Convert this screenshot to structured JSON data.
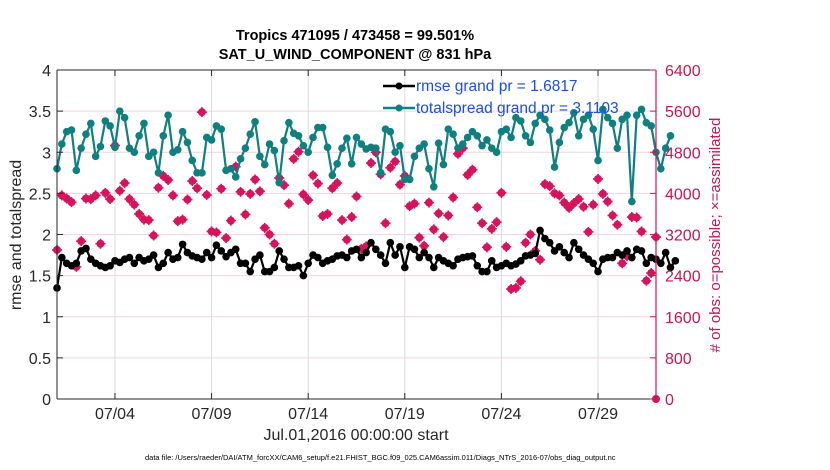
{
  "chart_data": {
    "type": "line",
    "title": [
      "Tropics 471095 / 473458 = 99.501%",
      "SAT_U_WIND_COMPONENT @ 831 hPa"
    ],
    "xlabel": "Jul.01,2016 00:00:00 start",
    "ylabel": "rmse and totalspread",
    "ylabel_right": "# of obs: o=possible; ×=assimilated",
    "xlim_days": [
      0,
      31
    ],
    "ylim": [
      0,
      4
    ],
    "ylim_right": [
      0,
      6400
    ],
    "x_ticks": [
      {
        "day": 3,
        "label": "07/04"
      },
      {
        "day": 8,
        "label": "07/09"
      },
      {
        "day": 13,
        "label": "07/14"
      },
      {
        "day": 18,
        "label": "07/19"
      },
      {
        "day": 23,
        "label": "07/24"
      },
      {
        "day": 28,
        "label": "07/29"
      }
    ],
    "y_ticks": [
      "0",
      "0.5",
      "1",
      "1.5",
      "2",
      "2.5",
      "3",
      "3.5",
      "4"
    ],
    "y_ticks_right": [
      "0",
      "800",
      "1600",
      "2400",
      "3200",
      "4000",
      "4800",
      "5600",
      "6400"
    ],
    "grid": true,
    "legend_placement": "top-right",
    "legend": [
      {
        "label": "rmse grand pr = 1.6817",
        "color": "#000000"
      },
      {
        "label": "totalspread grand pr = 3.1103",
        "color": "#0f7f7f"
      }
    ],
    "time_step_days": 0.25,
    "series": [
      {
        "name": "rmse",
        "axis": "left",
        "color": "#000000",
        "values": [
          1.35,
          1.72,
          1.65,
          1.62,
          1.65,
          1.8,
          1.83,
          1.7,
          1.65,
          1.62,
          1.6,
          1.62,
          1.68,
          1.66,
          1.7,
          1.72,
          1.65,
          1.72,
          1.68,
          1.7,
          1.75,
          1.6,
          1.65,
          1.78,
          1.7,
          1.72,
          1.88,
          1.78,
          1.74,
          1.72,
          1.7,
          1.78,
          1.72,
          1.87,
          1.8,
          1.73,
          1.78,
          1.82,
          1.65,
          1.65,
          1.55,
          1.7,
          1.75,
          1.55,
          1.55,
          1.6,
          1.8,
          1.7,
          1.6,
          1.6,
          1.62,
          1.5,
          1.65,
          1.75,
          1.72,
          1.65,
          1.68,
          1.7,
          1.74,
          1.75,
          1.72,
          1.8,
          1.82,
          1.72,
          1.78,
          1.9,
          1.82,
          1.75,
          1.65,
          1.9,
          1.75,
          1.85,
          1.6,
          1.85,
          1.82,
          1.72,
          1.78,
          1.72,
          1.6,
          1.72,
          1.68,
          1.65,
          1.62,
          1.7,
          1.72,
          1.73,
          1.74,
          1.62,
          1.55,
          1.55,
          1.68,
          1.6,
          1.62,
          1.65,
          1.62,
          1.64,
          1.68,
          1.74,
          1.75,
          1.77,
          2.05,
          1.95,
          1.9,
          1.8,
          1.85,
          1.78,
          1.72,
          1.9,
          1.82,
          1.75,
          1.7,
          1.65,
          1.55,
          1.7,
          1.72,
          1.72,
          1.78,
          1.75,
          1.8,
          1.72,
          1.82,
          1.8,
          1.65,
          1.72,
          1.7,
          1.65,
          1.78,
          1.6,
          1.68
        ]
      },
      {
        "name": "totalspread",
        "axis": "left",
        "color": "#0f7f7f",
        "values": [
          2.8,
          3.1,
          3.25,
          3.27,
          2.78,
          3.05,
          3.22,
          3.35,
          2.95,
          3.07,
          3.38,
          3.32,
          3.06,
          3.5,
          3.42,
          3.05,
          3.0,
          3.2,
          3.35,
          2.95,
          3.0,
          2.75,
          3.2,
          3.45,
          3.0,
          3.03,
          3.25,
          3.12,
          2.9,
          2.75,
          2.75,
          3.18,
          3.15,
          3.32,
          3.28,
          2.78,
          2.8,
          2.7,
          2.92,
          3.05,
          3.22,
          3.37,
          2.95,
          2.85,
          3.1,
          3.02,
          2.63,
          3.14,
          3.36,
          3.23,
          3.2,
          3.08,
          3.0,
          3.18,
          3.3,
          3.3,
          3.06,
          2.72,
          2.86,
          3.05,
          3.17,
          2.86,
          3.18,
          3.1,
          3.04,
          3.06,
          3.05,
          2.75,
          3.28,
          3.25,
          3.0,
          3.08,
          2.67,
          2.67,
          2.95,
          3.05,
          3.1,
          2.8,
          2.58,
          3.11,
          2.85,
          3.28,
          3.22,
          3.05,
          3.1,
          3.18,
          3.25,
          3.2,
          3.08,
          3.15,
          3.05,
          3.0,
          3.25,
          3.28,
          3.18,
          3.42,
          3.38,
          3.2,
          3.12,
          3.35,
          3.45,
          3.4,
          3.27,
          2.82,
          3.12,
          3.3,
          3.36,
          3.48,
          3.2,
          3.4,
          3.45,
          3.28,
          2.9,
          3.52,
          3.42,
          3.35,
          3.05,
          3.4,
          3.45,
          2.4,
          3.45,
          3.52,
          3.36,
          3.32,
          3.0,
          2.8,
          3.05,
          3.2
        ]
      }
    ],
    "obs_series": [
      {
        "name": "obs possible",
        "axis": "right",
        "color": "#d6145e",
        "marker": "o",
        "values": [
          2900,
          3960,
          3900,
          3830,
          2570,
          3070,
          3900,
          3890,
          3960,
          3020,
          4010,
          3890,
          4930,
          4050,
          4200,
          3890,
          3780,
          3600,
          3490,
          3480,
          3180,
          4110,
          4340,
          4260,
          3960,
          3460,
          3490,
          3880,
          4240,
          4100,
          5580,
          3970,
          3260,
          3240,
          4090,
          3130,
          3470,
          4520,
          4030,
          3590,
          3990,
          4270,
          4040,
          3330,
          3200,
          3020,
          4300,
          4160,
          3800,
          4670,
          4810,
          3980,
          3870,
          4350,
          4190,
          3560,
          3600,
          4100,
          4200,
          3480,
          3100,
          3540,
          3940,
          2920,
          2970,
          4590,
          4800,
          4370,
          3420,
          4500,
          4620,
          4170,
          4340,
          3750,
          3800,
          3140,
          2980,
          3820,
          3300,
          3610,
          3150,
          3570,
          3920,
          4770,
          4880,
          4360,
          4460,
          3730,
          3420,
          2950,
          3310,
          3440,
          4010,
          2960,
          2140,
          2160,
          2290,
          3040,
          3200,
          2880,
          2710,
          4180,
          4140,
          4000,
          3960,
          3820,
          3720,
          3810,
          3890,
          3740,
          3250,
          3780,
          4280,
          3990,
          3840,
          3570,
          3390,
          2640,
          2780,
          3540,
          3530,
          3260,
          2300,
          2450,
          3150
        ]
      }
    ]
  },
  "footnote": "data file: /Users/raeder/DAI/ATM_forcXX/CAM6_setup/f.e21.FHIST_BGC.f09_025.CAM6assim.011/Diags_NTrS_2016-07/obs_diag_output.nc"
}
